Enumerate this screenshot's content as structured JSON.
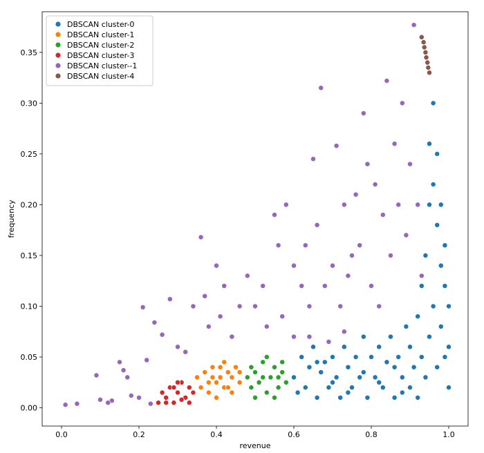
{
  "chart_data": {
    "type": "scatter",
    "title": "",
    "xlabel": "revenue",
    "ylabel": "frequency",
    "xlim": [
      -0.05,
      1.05
    ],
    "ylim": [
      -0.018,
      0.39
    ],
    "x_ticks": [
      0.0,
      0.2,
      0.4,
      0.6,
      0.8,
      1.0
    ],
    "x_tick_labels": [
      "0.0",
      "0.2",
      "0.4",
      "0.6",
      "0.8",
      "1.0"
    ],
    "y_ticks": [
      0.0,
      0.05,
      0.1,
      0.15,
      0.2,
      0.25,
      0.3,
      0.35
    ],
    "y_tick_labels": [
      "0.00",
      "0.05",
      "0.10",
      "0.15",
      "0.20",
      "0.25",
      "0.30",
      "0.35"
    ],
    "grid": false,
    "legend_position": "top-left",
    "series": [
      {
        "name": "DBSCAN cluster-0",
        "color": "#1f77b4",
        "points": [
          [
            0.6,
            0.03
          ],
          [
            0.62,
            0.05
          ],
          [
            0.63,
            0.02
          ],
          [
            0.64,
            0.04
          ],
          [
            0.65,
            0.06
          ],
          [
            0.66,
            0.01
          ],
          [
            0.67,
            0.035
          ],
          [
            0.68,
            0.045
          ],
          [
            0.69,
            0.02
          ],
          [
            0.7,
            0.05
          ],
          [
            0.71,
            0.03
          ],
          [
            0.72,
            0.01
          ],
          [
            0.73,
            0.06
          ],
          [
            0.74,
            0.04
          ],
          [
            0.75,
            0.02
          ],
          [
            0.76,
            0.05
          ],
          [
            0.77,
            0.03
          ],
          [
            0.78,
            0.07
          ],
          [
            0.79,
            0.01
          ],
          [
            0.8,
            0.05
          ],
          [
            0.81,
            0.03
          ],
          [
            0.82,
            0.06
          ],
          [
            0.83,
            0.02
          ],
          [
            0.84,
            0.045
          ],
          [
            0.85,
            0.07
          ],
          [
            0.86,
            0.01
          ],
          [
            0.87,
            0.05
          ],
          [
            0.88,
            0.03
          ],
          [
            0.89,
            0.08
          ],
          [
            0.9,
            0.02
          ],
          [
            0.9,
            0.06
          ],
          [
            0.91,
            0.04
          ],
          [
            0.92,
            0.09
          ],
          [
            0.92,
            0.01
          ],
          [
            0.93,
            0.12
          ],
          [
            0.93,
            0.05
          ],
          [
            0.94,
            0.15
          ],
          [
            0.94,
            0.03
          ],
          [
            0.95,
            0.2
          ],
          [
            0.95,
            0.07
          ],
          [
            0.95,
            0.26
          ],
          [
            0.96,
            0.1
          ],
          [
            0.96,
            0.22
          ],
          [
            0.96,
            0.3
          ],
          [
            0.97,
            0.18
          ],
          [
            0.97,
            0.04
          ],
          [
            0.97,
            0.25
          ],
          [
            0.98,
            0.14
          ],
          [
            0.98,
            0.08
          ],
          [
            0.98,
            0.2
          ],
          [
            0.99,
            0.12
          ],
          [
            0.99,
            0.05
          ],
          [
            0.99,
            0.16
          ],
          [
            1.0,
            0.02
          ],
          [
            1.0,
            0.06
          ],
          [
            1.0,
            0.1
          ],
          [
            0.61,
            0.015
          ],
          [
            0.66,
            0.045
          ],
          [
            0.7,
            0.025
          ],
          [
            0.74,
            0.015
          ],
          [
            0.78,
            0.035
          ],
          [
            0.82,
            0.025
          ],
          [
            0.86,
            0.04
          ],
          [
            0.88,
            0.015
          ]
        ]
      },
      {
        "name": "DBSCAN cluster-1",
        "color": "#ff7f0e",
        "points": [
          [
            0.36,
            0.02
          ],
          [
            0.37,
            0.035
          ],
          [
            0.38,
            0.015
          ],
          [
            0.39,
            0.03
          ],
          [
            0.4,
            0.025
          ],
          [
            0.41,
            0.04
          ],
          [
            0.42,
            0.02
          ],
          [
            0.43,
            0.035
          ],
          [
            0.44,
            0.03
          ],
          [
            0.45,
            0.04
          ],
          [
            0.46,
            0.025
          ],
          [
            0.4,
            0.01
          ],
          [
            0.42,
            0.045
          ],
          [
            0.38,
            0.025
          ],
          [
            0.44,
            0.015
          ],
          [
            0.35,
            0.03
          ],
          [
            0.41,
            0.03
          ],
          [
            0.43,
            0.02
          ],
          [
            0.39,
            0.04
          ],
          [
            0.46,
            0.035
          ]
        ]
      },
      {
        "name": "DBSCAN cluster-2",
        "color": "#2ca02c",
        "points": [
          [
            0.48,
            0.03
          ],
          [
            0.49,
            0.02
          ],
          [
            0.5,
            0.035
          ],
          [
            0.51,
            0.025
          ],
          [
            0.52,
            0.045
          ],
          [
            0.53,
            0.015
          ],
          [
            0.54,
            0.03
          ],
          [
            0.55,
            0.04
          ],
          [
            0.56,
            0.02
          ],
          [
            0.57,
            0.035
          ],
          [
            0.58,
            0.025
          ],
          [
            0.5,
            0.01
          ],
          [
            0.52,
            0.03
          ],
          [
            0.55,
            0.01
          ],
          [
            0.57,
            0.045
          ],
          [
            0.53,
            0.05
          ],
          [
            0.49,
            0.04
          ],
          [
            0.56,
            0.03
          ]
        ]
      },
      {
        "name": "DBSCAN cluster-3",
        "color": "#d62728",
        "points": [
          [
            0.25,
            0.005
          ],
          [
            0.26,
            0.015
          ],
          [
            0.27,
            0.01
          ],
          [
            0.28,
            0.02
          ],
          [
            0.29,
            0.005
          ],
          [
            0.3,
            0.015
          ],
          [
            0.31,
            0.025
          ],
          [
            0.32,
            0.01
          ],
          [
            0.33,
            0.02
          ],
          [
            0.34,
            0.015
          ],
          [
            0.27,
            0.005
          ],
          [
            0.29,
            0.02
          ],
          [
            0.31,
            0.008
          ],
          [
            0.33,
            0.005
          ],
          [
            0.3,
            0.025
          ]
        ]
      },
      {
        "name": "DBSCAN cluster--1",
        "color": "#9467bd",
        "points": [
          [
            0.01,
            0.003
          ],
          [
            0.04,
            0.004
          ],
          [
            0.1,
            0.008
          ],
          [
            0.13,
            0.007
          ],
          [
            0.15,
            0.045
          ],
          [
            0.2,
            0.01
          ],
          [
            0.21,
            0.099
          ],
          [
            0.22,
            0.047
          ],
          [
            0.24,
            0.084
          ],
          [
            0.26,
            0.072
          ],
          [
            0.28,
            0.107
          ],
          [
            0.3,
            0.06
          ],
          [
            0.32,
            0.055
          ],
          [
            0.34,
            0.1
          ],
          [
            0.36,
            0.168
          ],
          [
            0.37,
            0.11
          ],
          [
            0.38,
            0.08
          ],
          [
            0.4,
            0.14
          ],
          [
            0.41,
            0.09
          ],
          [
            0.42,
            0.12
          ],
          [
            0.44,
            0.07
          ],
          [
            0.46,
            0.1
          ],
          [
            0.48,
            0.13
          ],
          [
            0.5,
            0.1
          ],
          [
            0.52,
            0.12
          ],
          [
            0.53,
            0.08
          ],
          [
            0.55,
            0.19
          ],
          [
            0.56,
            0.16
          ],
          [
            0.57,
            0.09
          ],
          [
            0.58,
            0.2
          ],
          [
            0.6,
            0.14
          ],
          [
            0.62,
            0.12
          ],
          [
            0.63,
            0.16
          ],
          [
            0.64,
            0.1
          ],
          [
            0.65,
            0.245
          ],
          [
            0.66,
            0.18
          ],
          [
            0.67,
            0.315
          ],
          [
            0.68,
            0.12
          ],
          [
            0.7,
            0.14
          ],
          [
            0.71,
            0.258
          ],
          [
            0.72,
            0.1
          ],
          [
            0.73,
            0.2
          ],
          [
            0.74,
            0.13
          ],
          [
            0.75,
            0.15
          ],
          [
            0.76,
            0.21
          ],
          [
            0.77,
            0.16
          ],
          [
            0.78,
            0.29
          ],
          [
            0.79,
            0.24
          ],
          [
            0.8,
            0.12
          ],
          [
            0.81,
            0.22
          ],
          [
            0.82,
            0.1
          ],
          [
            0.83,
            0.19
          ],
          [
            0.84,
            0.322
          ],
          [
            0.85,
            0.15
          ],
          [
            0.86,
            0.26
          ],
          [
            0.87,
            0.2
          ],
          [
            0.88,
            0.3
          ],
          [
            0.89,
            0.17
          ],
          [
            0.9,
            0.24
          ],
          [
            0.91,
            0.377
          ],
          [
            0.92,
            0.2
          ],
          [
            0.93,
            0.13
          ],
          [
            0.6,
            0.07
          ],
          [
            0.64,
            0.07
          ],
          [
            0.69,
            0.065
          ],
          [
            0.73,
            0.075
          ],
          [
            0.12,
            0.005
          ],
          [
            0.18,
            0.012
          ],
          [
            0.09,
            0.032
          ],
          [
            0.17,
            0.03
          ],
          [
            0.16,
            0.037
          ],
          [
            0.23,
            0.004
          ]
        ]
      },
      {
        "name": "DBSCAN cluster-4",
        "color": "#8c564b",
        "points": [
          [
            0.93,
            0.365
          ],
          [
            0.935,
            0.36
          ],
          [
            0.937,
            0.355
          ],
          [
            0.94,
            0.35
          ],
          [
            0.942,
            0.345
          ],
          [
            0.945,
            0.34
          ],
          [
            0.947,
            0.335
          ],
          [
            0.95,
            0.33
          ]
        ]
      }
    ]
  }
}
